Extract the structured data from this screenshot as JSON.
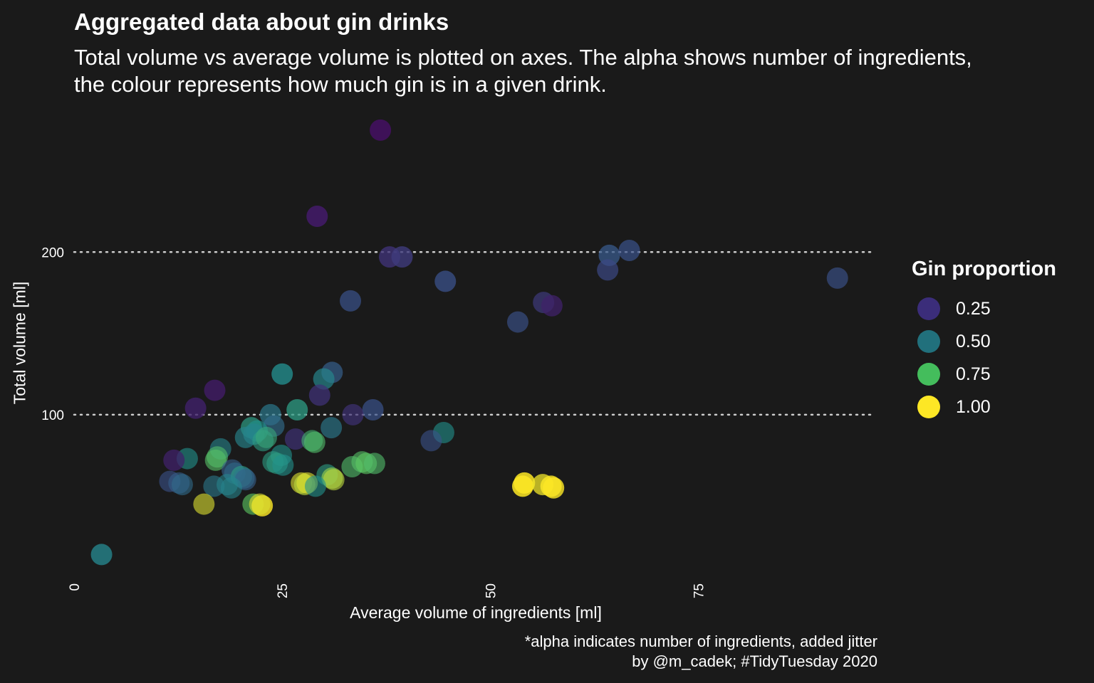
{
  "chart_data": {
    "type": "scatter",
    "title": "Aggregated data about gin drinks",
    "subtitle_lines": [
      "Total volume vs average volume is plotted on axes. The alpha shows number of ingredients,",
      "the colour represents how much gin is in a given drink."
    ],
    "xlabel": "Average volume of ingredients [ml]",
    "ylabel": "Total volume [ml]",
    "caption_lines": [
      "*alpha indicates number of ingredients, added jitter",
      "by @m_cadek; #TidyTuesday 2020"
    ],
    "xlim": [
      0,
      96
    ],
    "ylim": [
      5,
      285
    ],
    "x_ticks": [
      0,
      25,
      50,
      75
    ],
    "y_ticks": [
      100,
      200
    ],
    "grid": "horizontal dotted at y ticks",
    "legend": {
      "title": "Gin proportion",
      "placement": "right",
      "entries": [
        {
          "label": "0.25",
          "color": "#3b2d7a"
        },
        {
          "label": "0.50",
          "color": "#21707c"
        },
        {
          "label": "0.75",
          "color": "#44bd5c"
        },
        {
          "label": "1.00",
          "color": "#fde725"
        }
      ]
    },
    "points": [
      {
        "x": 36.8,
        "y": 275,
        "gin": 0.05,
        "alpha": 0.9
      },
      {
        "x": 29.2,
        "y": 222,
        "gin": 0.08,
        "alpha": 0.9
      },
      {
        "x": 37.9,
        "y": 197,
        "gin": 0.15,
        "alpha": 0.8
      },
      {
        "x": 39.4,
        "y": 197,
        "gin": 0.18,
        "alpha": 0.8
      },
      {
        "x": 33.2,
        "y": 170,
        "gin": 0.25,
        "alpha": 0.7
      },
      {
        "x": 44.6,
        "y": 182,
        "gin": 0.25,
        "alpha": 0.75
      },
      {
        "x": 64.3,
        "y": 198,
        "gin": 0.28,
        "alpha": 0.75
      },
      {
        "x": 66.7,
        "y": 201,
        "gin": 0.25,
        "alpha": 0.7
      },
      {
        "x": 64.1,
        "y": 189,
        "gin": 0.22,
        "alpha": 0.7
      },
      {
        "x": 91.7,
        "y": 184,
        "gin": 0.25,
        "alpha": 0.65
      },
      {
        "x": 56.4,
        "y": 169,
        "gin": 0.18,
        "alpha": 0.7
      },
      {
        "x": 57.4,
        "y": 167,
        "gin": 0.1,
        "alpha": 0.75
      },
      {
        "x": 53.3,
        "y": 157,
        "gin": 0.25,
        "alpha": 0.65
      },
      {
        "x": 25.0,
        "y": 125,
        "gin": 0.48,
        "alpha": 0.8
      },
      {
        "x": 31.0,
        "y": 126,
        "gin": 0.3,
        "alpha": 0.7
      },
      {
        "x": 30.0,
        "y": 122,
        "gin": 0.45,
        "alpha": 0.7
      },
      {
        "x": 29.5,
        "y": 112,
        "gin": 0.15,
        "alpha": 0.75
      },
      {
        "x": 16.9,
        "y": 115,
        "gin": 0.08,
        "alpha": 0.8
      },
      {
        "x": 14.6,
        "y": 104,
        "gin": 0.1,
        "alpha": 0.8
      },
      {
        "x": 26.8,
        "y": 103,
        "gin": 0.55,
        "alpha": 0.75
      },
      {
        "x": 35.9,
        "y": 103,
        "gin": 0.25,
        "alpha": 0.7
      },
      {
        "x": 33.5,
        "y": 100,
        "gin": 0.15,
        "alpha": 0.7
      },
      {
        "x": 23.6,
        "y": 100,
        "gin": 0.4,
        "alpha": 0.7
      },
      {
        "x": 24.0,
        "y": 93,
        "gin": 0.35,
        "alpha": 0.65
      },
      {
        "x": 21.3,
        "y": 92,
        "gin": 0.55,
        "alpha": 0.7
      },
      {
        "x": 30.9,
        "y": 92,
        "gin": 0.4,
        "alpha": 0.65
      },
      {
        "x": 22.0,
        "y": 90,
        "gin": 0.5,
        "alpha": 0.65
      },
      {
        "x": 21.6,
        "y": 88,
        "gin": 0.45,
        "alpha": 0.65
      },
      {
        "x": 20.6,
        "y": 86,
        "gin": 0.45,
        "alpha": 0.65
      },
      {
        "x": 44.4,
        "y": 89,
        "gin": 0.5,
        "alpha": 0.6
      },
      {
        "x": 42.9,
        "y": 84,
        "gin": 0.25,
        "alpha": 0.6
      },
      {
        "x": 26.6,
        "y": 85,
        "gin": 0.15,
        "alpha": 0.7
      },
      {
        "x": 28.6,
        "y": 84,
        "gin": 0.65,
        "alpha": 0.6
      },
      {
        "x": 28.9,
        "y": 83,
        "gin": 0.7,
        "alpha": 0.6
      },
      {
        "x": 22.7,
        "y": 84,
        "gin": 0.55,
        "alpha": 0.6
      },
      {
        "x": 23.1,
        "y": 86,
        "gin": 0.6,
        "alpha": 0.6
      },
      {
        "x": 17.6,
        "y": 79,
        "gin": 0.45,
        "alpha": 0.6
      },
      {
        "x": 24.9,
        "y": 75,
        "gin": 0.5,
        "alpha": 0.6
      },
      {
        "x": 17.2,
        "y": 74,
        "gin": 0.7,
        "alpha": 0.6
      },
      {
        "x": 17.0,
        "y": 72,
        "gin": 0.72,
        "alpha": 0.6
      },
      {
        "x": 13.6,
        "y": 73,
        "gin": 0.5,
        "alpha": 0.6
      },
      {
        "x": 12.0,
        "y": 72,
        "gin": 0.1,
        "alpha": 0.75
      },
      {
        "x": 23.9,
        "y": 71,
        "gin": 0.55,
        "alpha": 0.6
      },
      {
        "x": 24.4,
        "y": 70,
        "gin": 0.55,
        "alpha": 0.6
      },
      {
        "x": 25.1,
        "y": 69,
        "gin": 0.5,
        "alpha": 0.6
      },
      {
        "x": 33.4,
        "y": 68,
        "gin": 0.7,
        "alpha": 0.6
      },
      {
        "x": 34.6,
        "y": 71,
        "gin": 0.72,
        "alpha": 0.6
      },
      {
        "x": 35.1,
        "y": 70,
        "gin": 0.75,
        "alpha": 0.6
      },
      {
        "x": 36.1,
        "y": 70,
        "gin": 0.7,
        "alpha": 0.6
      },
      {
        "x": 19.0,
        "y": 66,
        "gin": 0.3,
        "alpha": 0.6
      },
      {
        "x": 19.3,
        "y": 64,
        "gin": 0.35,
        "alpha": 0.6
      },
      {
        "x": 20.1,
        "y": 62,
        "gin": 0.55,
        "alpha": 0.6
      },
      {
        "x": 20.4,
        "y": 61,
        "gin": 0.4,
        "alpha": 0.6
      },
      {
        "x": 20.6,
        "y": 60,
        "gin": 0.3,
        "alpha": 0.6
      },
      {
        "x": 30.4,
        "y": 63,
        "gin": 0.55,
        "alpha": 0.6
      },
      {
        "x": 31.0,
        "y": 61,
        "gin": 0.85,
        "alpha": 0.6
      },
      {
        "x": 31.2,
        "y": 60,
        "gin": 0.9,
        "alpha": 0.6
      },
      {
        "x": 11.5,
        "y": 59,
        "gin": 0.25,
        "alpha": 0.6
      },
      {
        "x": 12.6,
        "y": 58,
        "gin": 0.3,
        "alpha": 0.6
      },
      {
        "x": 13.0,
        "y": 57,
        "gin": 0.35,
        "alpha": 0.6
      },
      {
        "x": 16.8,
        "y": 56,
        "gin": 0.4,
        "alpha": 0.6
      },
      {
        "x": 18.4,
        "y": 57,
        "gin": 0.45,
        "alpha": 0.6
      },
      {
        "x": 18.9,
        "y": 55,
        "gin": 0.45,
        "alpha": 0.6
      },
      {
        "x": 27.3,
        "y": 58,
        "gin": 0.95,
        "alpha": 0.6
      },
      {
        "x": 27.7,
        "y": 57,
        "gin": 0.9,
        "alpha": 0.6
      },
      {
        "x": 28.0,
        "y": 58,
        "gin": 0.95,
        "alpha": 0.6
      },
      {
        "x": 29.0,
        "y": 56,
        "gin": 0.5,
        "alpha": 0.6
      },
      {
        "x": 54.1,
        "y": 58,
        "gin": 1.0,
        "alpha": 0.85
      },
      {
        "x": 53.9,
        "y": 56,
        "gin": 1.0,
        "alpha": 0.85
      },
      {
        "x": 56.3,
        "y": 57,
        "gin": 0.98,
        "alpha": 0.75
      },
      {
        "x": 57.3,
        "y": 56,
        "gin": 1.0,
        "alpha": 0.8
      },
      {
        "x": 57.6,
        "y": 55,
        "gin": 1.0,
        "alpha": 0.8
      },
      {
        "x": 15.6,
        "y": 45,
        "gin": 0.95,
        "alpha": 0.6
      },
      {
        "x": 21.5,
        "y": 45,
        "gin": 0.75,
        "alpha": 0.6
      },
      {
        "x": 22.6,
        "y": 44,
        "gin": 1.0,
        "alpha": 0.8
      },
      {
        "x": 22.3,
        "y": 45,
        "gin": 0.95,
        "alpha": 0.6
      },
      {
        "x": 3.3,
        "y": 14,
        "gin": 0.45,
        "alpha": 0.8
      }
    ]
  }
}
